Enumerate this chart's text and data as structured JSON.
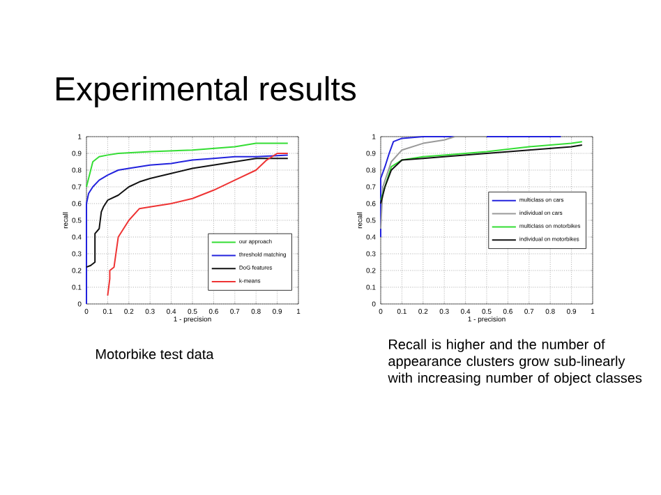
{
  "chart_data": [
    {
      "type": "line",
      "title": "Experimental results",
      "xlabel": "1 - precision",
      "ylabel": "recall",
      "xlim": [
        0,
        1
      ],
      "ylim": [
        0,
        1
      ],
      "xticks": [
        0,
        0.1,
        0.2,
        0.3,
        0.4,
        0.5,
        0.6,
        0.7,
        0.8,
        0.9,
        1
      ],
      "yticks": [
        0,
        0.1,
        0.2,
        0.3,
        0.4,
        0.5,
        0.6,
        0.7,
        0.8,
        0.9,
        1
      ],
      "grid": true,
      "legend": "bottom right",
      "marker": "none",
      "line_style": "solid",
      "annotations": [
        "Motorbike test data"
      ],
      "series": [
        {
          "name": "our approach",
          "color": "#33dd33",
          "x": [
            0,
            0.01,
            0.03,
            0.06,
            0.1,
            0.15,
            0.3,
            0.5,
            0.6,
            0.7,
            0.8,
            0.95
          ],
          "values": [
            0.7,
            0.75,
            0.85,
            0.88,
            0.89,
            0.9,
            0.91,
            0.92,
            0.93,
            0.94,
            0.96,
            0.96
          ]
        },
        {
          "name": "threshold matching",
          "color": "#2222dd",
          "x": [
            0,
            0,
            0.01,
            0.03,
            0.06,
            0.1,
            0.15,
            0.2,
            0.3,
            0.4,
            0.5,
            0.6,
            0.7,
            0.8,
            0.95
          ],
          "values": [
            0.0,
            0.6,
            0.66,
            0.7,
            0.74,
            0.77,
            0.8,
            0.81,
            0.83,
            0.84,
            0.86,
            0.87,
            0.88,
            0.88,
            0.89
          ]
        },
        {
          "name": "DoG features",
          "color": "#111111",
          "x": [
            0,
            0.02,
            0.04,
            0.04,
            0.06,
            0.07,
            0.08,
            0.1,
            0.15,
            0.2,
            0.25,
            0.3,
            0.4,
            0.5,
            0.6,
            0.7,
            0.8,
            0.95
          ],
          "values": [
            0.22,
            0.23,
            0.25,
            0.42,
            0.45,
            0.55,
            0.58,
            0.62,
            0.65,
            0.7,
            0.73,
            0.75,
            0.78,
            0.81,
            0.83,
            0.85,
            0.87,
            0.87
          ]
        },
        {
          "name": "k-means",
          "color": "#ee3333",
          "x": [
            0.1,
            0.11,
            0.11,
            0.13,
            0.15,
            0.2,
            0.25,
            0.3,
            0.4,
            0.5,
            0.6,
            0.7,
            0.8,
            0.85,
            0.9,
            0.95
          ],
          "values": [
            0.05,
            0.15,
            0.2,
            0.22,
            0.4,
            0.5,
            0.57,
            0.58,
            0.6,
            0.63,
            0.68,
            0.74,
            0.8,
            0.86,
            0.9,
            0.9
          ]
        }
      ]
    },
    {
      "type": "line",
      "xlabel": "1 - precision",
      "ylabel": "recall",
      "xlim": [
        0,
        1
      ],
      "ylim": [
        0,
        1
      ],
      "xticks": [
        0,
        0.1,
        0.2,
        0.3,
        0.4,
        0.5,
        0.6,
        0.7,
        0.8,
        0.9,
        1
      ],
      "yticks": [
        0,
        0.1,
        0.2,
        0.3,
        0.4,
        0.5,
        0.6,
        0.7,
        0.8,
        0.9,
        1
      ],
      "grid": true,
      "legend": "right",
      "marker": "none",
      "line_style": "solid",
      "annotations": [
        "Recall is higher and the number of appearance clusters grow sub-linearly with increasing number of object classes"
      ],
      "series": [
        {
          "name": "multiclass on cars",
          "color": "#2222dd",
          "x": [
            0,
            0,
            0.02,
            0.04,
            0.06,
            0.1,
            0.2,
            0.85
          ],
          "values": [
            0.4,
            0.75,
            0.82,
            0.9,
            0.97,
            0.99,
            1.0,
            1.0
          ]
        },
        {
          "name": "individual on cars",
          "color": "#999999",
          "x": [
            0,
            0.01,
            0.05,
            0.1,
            0.2,
            0.3,
            0.35,
            0.5
          ],
          "values": [
            0.45,
            0.7,
            0.85,
            0.92,
            0.96,
            0.98,
            1.0,
            1.0
          ]
        },
        {
          "name": "multiclass on motorbikes",
          "color": "#33dd33",
          "x": [
            0,
            0.02,
            0.05,
            0.1,
            0.2,
            0.3,
            0.5,
            0.7,
            0.9,
            0.95
          ],
          "values": [
            0.62,
            0.7,
            0.82,
            0.86,
            0.88,
            0.89,
            0.91,
            0.94,
            0.96,
            0.97
          ]
        },
        {
          "name": "individual on motorbikes",
          "color": "#111111",
          "x": [
            0,
            0.02,
            0.05,
            0.1,
            0.2,
            0.3,
            0.5,
            0.7,
            0.9,
            0.95
          ],
          "values": [
            0.6,
            0.7,
            0.8,
            0.86,
            0.87,
            0.88,
            0.9,
            0.92,
            0.94,
            0.95
          ]
        }
      ]
    }
  ]
}
